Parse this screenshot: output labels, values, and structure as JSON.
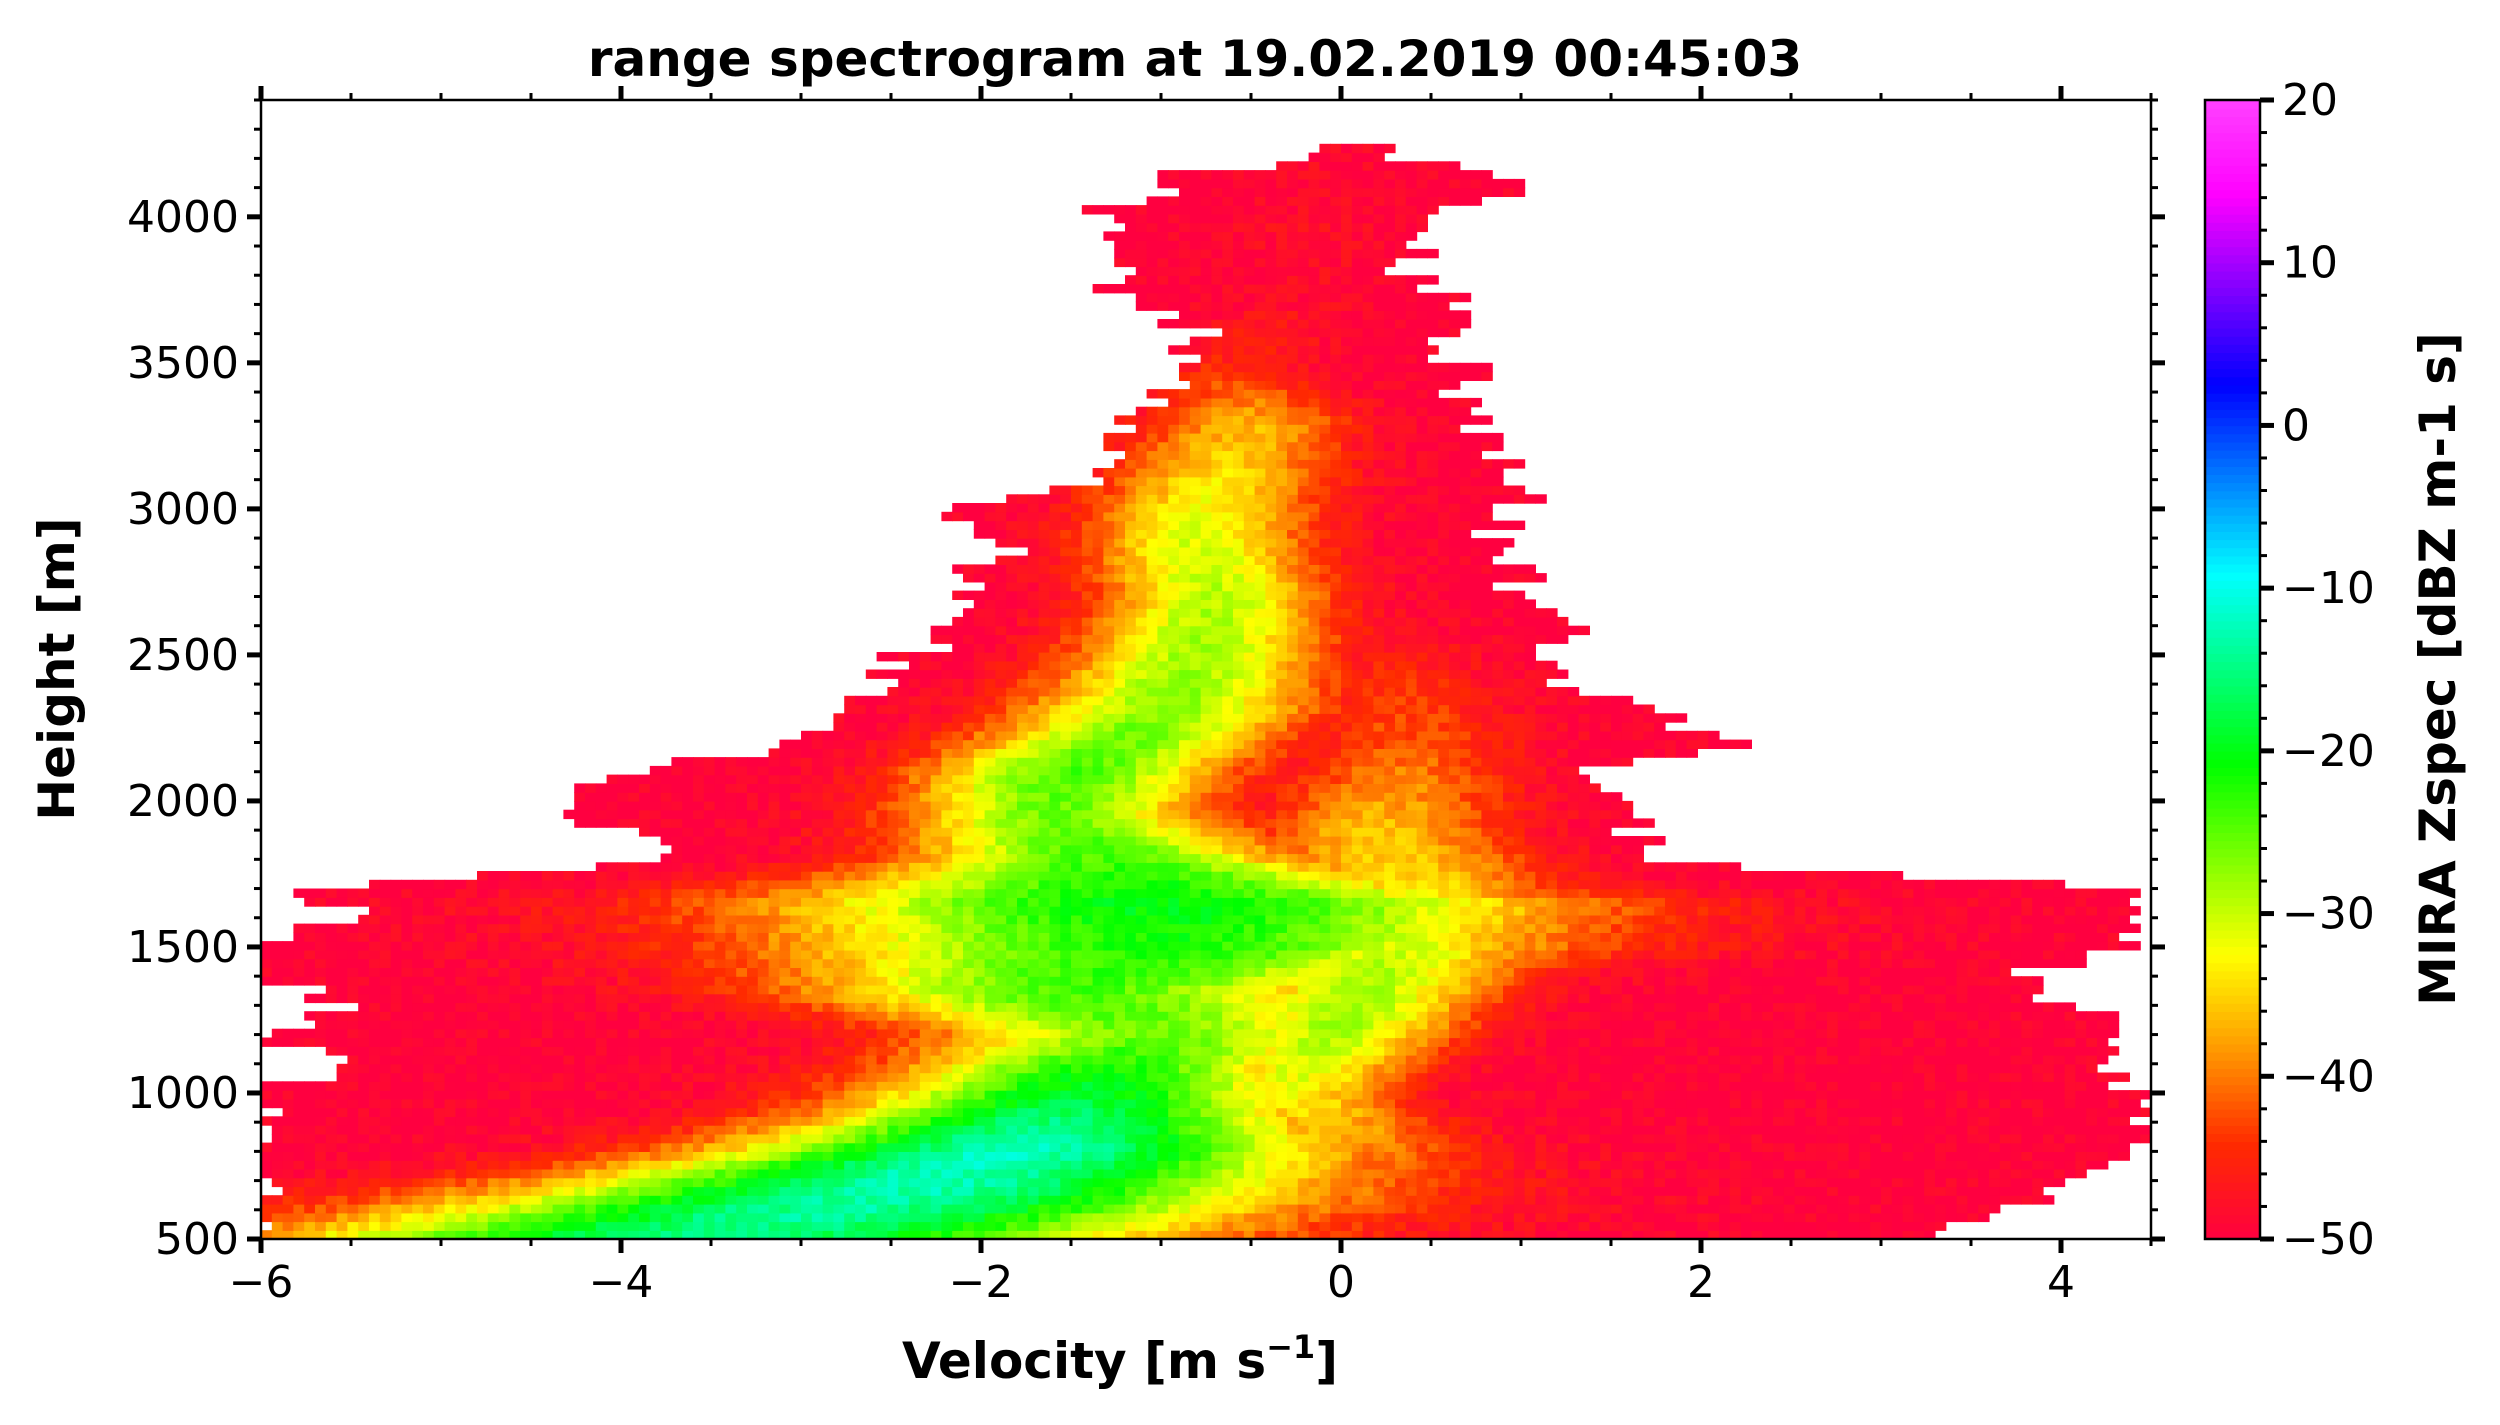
{
  "chart_data": {
    "type": "heatmap",
    "title": "range spectrogram at 19.02.2019 00:45:03",
    "xlabel": "Velocity [m s",
    "xlabel_sup": "−1",
    "xlabel_end": "]",
    "ylabel": "Height [m]",
    "colorbar_label": "MIRA Zspec [dBZ m-1 s]",
    "xlim": [
      -6,
      4.5
    ],
    "ylim": [
      500,
      4400
    ],
    "clim": [
      -50,
      20
    ],
    "x_ticks": [
      -6,
      -4,
      -2,
      0,
      2,
      4
    ],
    "x_tick_labels": [
      "−6",
      "−4",
      "−2",
      "0",
      "2",
      "4"
    ],
    "y_ticks": [
      500,
      1000,
      1500,
      2000,
      2500,
      3000,
      3500,
      4000
    ],
    "y_tick_labels": [
      "500",
      "1000",
      "1500",
      "2000",
      "2500",
      "3000",
      "3500",
      "4000"
    ],
    "c_ticks": [
      20,
      10,
      0,
      -10,
      -20,
      -30,
      -40,
      -50
    ],
    "c_tick_labels": [
      "20",
      "10",
      "0",
      "−10",
      "−20",
      "−30",
      "−40",
      "−50"
    ],
    "colormap": [
      "#ff0040",
      "#ff2a00",
      "#ff9900",
      "#ffff00",
      "#80ff00",
      "#00ff00",
      "#00ff80",
      "#00ffff",
      "#0080ff",
      "#0000ff",
      "#8000ff",
      "#ff00ff",
      "#ff40ff"
    ],
    "extent_profile": [
      {
        "h": 500,
        "left": -6.0,
        "right": 3.4
      },
      {
        "h": 600,
        "left": -6.0,
        "right": 3.7
      },
      {
        "h": 700,
        "left": -6.0,
        "right": 4.0
      },
      {
        "h": 800,
        "left": -6.0,
        "right": 4.4
      },
      {
        "h": 900,
        "left": -6.0,
        "right": 4.5
      },
      {
        "h": 1000,
        "left": -6.0,
        "right": 4.3
      },
      {
        "h": 1100,
        "left": -5.6,
        "right": 4.2
      },
      {
        "h": 1200,
        "left": -6.0,
        "right": 4.5
      },
      {
        "h": 1300,
        "left": -5.5,
        "right": 4.0
      },
      {
        "h": 1400,
        "left": -6.0,
        "right": 3.8
      },
      {
        "h": 1500,
        "left": -6.0,
        "right": 4.5
      },
      {
        "h": 1600,
        "left": -5.5,
        "right": 4.3
      },
      {
        "h": 1700,
        "left": -5.8,
        "right": 4.5
      },
      {
        "h": 1750,
        "left": -4.8,
        "right": 3.0
      },
      {
        "h": 1800,
        "left": -3.6,
        "right": 1.7
      },
      {
        "h": 1900,
        "left": -4.0,
        "right": 1.6
      },
      {
        "h": 2000,
        "left": -4.5,
        "right": 1.5
      },
      {
        "h": 2100,
        "left": -3.9,
        "right": 1.4
      },
      {
        "h": 2200,
        "left": -3.0,
        "right": 2.2
      },
      {
        "h": 2300,
        "left": -2.8,
        "right": 1.7
      },
      {
        "h": 2400,
        "left": -2.6,
        "right": 1.2
      },
      {
        "h": 2500,
        "left": -2.4,
        "right": 1.1
      },
      {
        "h": 2600,
        "left": -2.2,
        "right": 1.3
      },
      {
        "h": 2700,
        "left": -2.0,
        "right": 0.9
      },
      {
        "h": 2800,
        "left": -2.1,
        "right": 1.0
      },
      {
        "h": 2900,
        "left": -1.8,
        "right": 0.8
      },
      {
        "h": 3000,
        "left": -2.3,
        "right": 1.0
      },
      {
        "h": 3100,
        "left": -1.3,
        "right": 0.9
      },
      {
        "h": 3200,
        "left": -1.2,
        "right": 0.8
      },
      {
        "h": 3300,
        "left": -1.3,
        "right": 0.8
      },
      {
        "h": 3400,
        "left": -1.0,
        "right": 0.7
      },
      {
        "h": 3500,
        "left": -0.8,
        "right": 0.7
      },
      {
        "h": 3600,
        "left": -0.8,
        "right": 0.5
      },
      {
        "h": 3700,
        "left": -1.2,
        "right": 0.6
      },
      {
        "h": 3800,
        "left": -1.3,
        "right": 0.4
      },
      {
        "h": 3900,
        "left": -1.3,
        "right": 0.4
      },
      {
        "h": 4000,
        "left": -1.4,
        "right": 0.6
      },
      {
        "h": 4100,
        "left": -1.0,
        "right": 1.0
      },
      {
        "h": 4150,
        "left": -0.9,
        "right": 0.8
      },
      {
        "h": 4200,
        "left": -0.2,
        "right": 0.3
      }
    ],
    "peak_profile": [
      {
        "h": 500,
        "v": -3.5,
        "w": 1.8,
        "zmax": -15
      },
      {
        "h": 650,
        "v": -2.5,
        "w": 1.6,
        "zmax": -13
      },
      {
        "h": 800,
        "v": -1.8,
        "w": 1.2,
        "zmax": -12
      },
      {
        "h": 950,
        "v": -1.5,
        "w": 0.9,
        "zmax": -17
      },
      {
        "h": 1100,
        "v": -1.3,
        "w": 0.8,
        "zmax": -22
      },
      {
        "h": 1200,
        "v": -1.0,
        "w": 0.9,
        "zmax": -26
      },
      {
        "h": 1350,
        "v": -1.5,
        "w": 1.1,
        "zmax": -24
      },
      {
        "h": 1500,
        "v": -1.0,
        "w": 1.5,
        "zmax": -22
      },
      {
        "h": 1650,
        "v": -1.0,
        "w": 1.6,
        "zmax": -20
      },
      {
        "h": 1800,
        "v": -1.3,
        "w": 0.8,
        "zmax": -24
      },
      {
        "h": 1950,
        "v": -1.6,
        "w": 0.6,
        "zmax": -26
      },
      {
        "h": 2100,
        "v": -1.5,
        "w": 0.6,
        "zmax": -24
      },
      {
        "h": 2300,
        "v": -1.0,
        "w": 0.6,
        "zmax": -27
      },
      {
        "h": 2500,
        "v": -0.8,
        "w": 0.5,
        "zmax": -28
      },
      {
        "h": 2700,
        "v": -0.7,
        "w": 0.45,
        "zmax": -29
      },
      {
        "h": 2900,
        "v": -0.8,
        "w": 0.45,
        "zmax": -31
      },
      {
        "h": 3100,
        "v": -0.7,
        "w": 0.45,
        "zmax": -34
      },
      {
        "h": 3300,
        "v": -0.5,
        "w": 0.4,
        "zmax": -37
      },
      {
        "h": 3500,
        "v": -0.6,
        "w": 0.3,
        "zmax": -45
      },
      {
        "h": 3700,
        "v": -0.3,
        "w": 0.3,
        "zmax": -48
      },
      {
        "h": 4000,
        "v": -0.2,
        "w": 0.3,
        "zmax": -48
      },
      {
        "h": 4200,
        "v": 0.0,
        "w": 0.3,
        "zmax": -49
      }
    ],
    "secondary_peak_profile": [
      {
        "h": 500,
        "v": 0.5,
        "w": 0.8,
        "zmax": -50
      },
      {
        "h": 1000,
        "v": -0.3,
        "w": 0.4,
        "zmax": -32
      },
      {
        "h": 1250,
        "v": 0.0,
        "w": 0.5,
        "zmax": -28
      },
      {
        "h": 1500,
        "v": 0.3,
        "w": 0.6,
        "zmax": -30
      },
      {
        "h": 1700,
        "v": 0.4,
        "w": 0.6,
        "zmax": -34
      },
      {
        "h": 1900,
        "v": 0.2,
        "w": 0.5,
        "zmax": -36
      },
      {
        "h": 2200,
        "v": 0.4,
        "w": 0.45,
        "zmax": -42
      },
      {
        "h": 2400,
        "v": 0.3,
        "w": 0.4,
        "zmax": -44
      },
      {
        "h": 2700,
        "v": 0.3,
        "w": 0.3,
        "zmax": -50
      },
      {
        "h": 4200,
        "v": 0.3,
        "w": 0.3,
        "zmax": -50
      }
    ],
    "grid": false
  }
}
